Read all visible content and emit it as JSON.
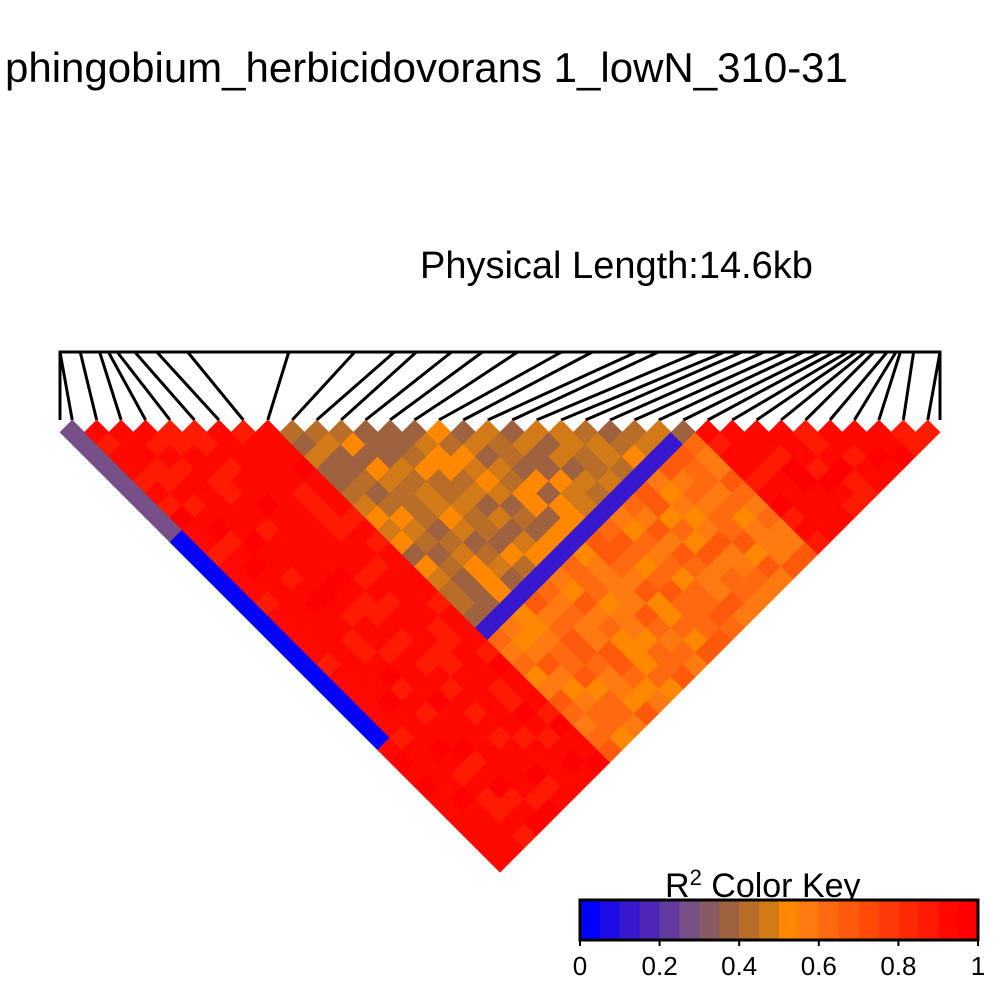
{
  "chart_data": {
    "type": "heatmap",
    "title": "phingobium_herbicidovorans 1_lowN_310-31",
    "subtitle_label": "Physical Length:",
    "subtitle_value": "14.6kb",
    "n_markers": 36,
    "tick_connector_targets_fraction": [
      0.0,
      0.023,
      0.045,
      0.055,
      0.065,
      0.085,
      0.11,
      0.145,
      0.26,
      0.335,
      0.38,
      0.405,
      0.445,
      0.48,
      0.52,
      0.57,
      0.605,
      0.655,
      0.68,
      0.725,
      0.755,
      0.775,
      0.8,
      0.825,
      0.845,
      0.865,
      0.88,
      0.895,
      0.905,
      0.915,
      0.925,
      0.94,
      0.95,
      0.955,
      0.97,
      1.0
    ],
    "color_key": {
      "title_base": "R",
      "title_sup": "2",
      "title_rest": " Color Key",
      "ticks": [
        "0",
        "0.2",
        "0.4",
        "0.6",
        "0.8",
        "1"
      ],
      "tick_values": [
        0,
        0.2,
        0.4,
        0.6,
        0.8,
        1.0
      ],
      "colors": [
        "#0000ff",
        "#1d0ce6",
        "#3718cf",
        "#4e26b8",
        "#633aa0",
        "#785088",
        "#8a5a64",
        "#9e6240",
        "#b86e28",
        "#d27a18",
        "#ff8800",
        "#ff7a10",
        "#ff6a10",
        "#ff5a0c",
        "#ff4a08",
        "#ff3a06",
        "#ff2a04",
        "#ff1a02",
        "#ff0800",
        "#ff0000"
      ]
    },
    "ld_rules": {
      "block_a_size": 9,
      "block_b_start": 9,
      "block_c_start": 26,
      "v_a_a": 0.92,
      "v_b_b": 0.45,
      "v_c_c": 0.6,
      "v_c_rest": 0.92,
      "v_a_b": 0.92,
      "v_marker0_b": 0.03,
      "v_marker0_a": 0.25,
      "v_marker25_b": 0.12
    }
  }
}
